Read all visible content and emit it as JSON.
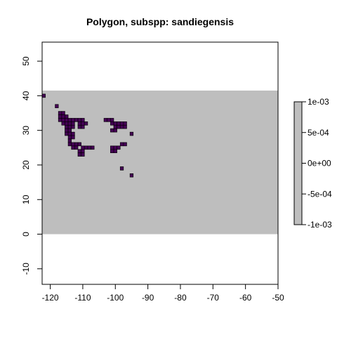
{
  "chart_data": {
    "type": "heatmap",
    "title": "Polygon, subspp: sandiegensis",
    "xlabel": "",
    "ylabel": "",
    "xlim": [
      -122.5,
      -50
    ],
    "ylim": [
      -14.5,
      55.5
    ],
    "x_ticks": [
      -120,
      -110,
      -100,
      -90,
      -80,
      -70,
      -60,
      -50
    ],
    "x_tick_labels": [
      "-120",
      "-110",
      "-100",
      "-90",
      "-80",
      "-70",
      "-60",
      "-50"
    ],
    "y_ticks": [
      -10,
      0,
      10,
      20,
      30,
      40,
      50
    ],
    "y_tick_labels": [
      "-10",
      "0",
      "10",
      "20",
      "30",
      "40",
      "50"
    ],
    "grid": false,
    "colors": {
      "background_cell": "#bebebe",
      "presence_cell": "#440154",
      "cell_border": "#000000"
    },
    "raster_extent": {
      "xmin": -122.5,
      "xmax": -50,
      "ymin": 0,
      "ymax": 41.5,
      "background_value": 0
    },
    "cell_size": 1,
    "presence_cells": [
      [
        -122,
        40
      ],
      [
        -118,
        37
      ],
      [
        -117,
        35
      ],
      [
        -116,
        35
      ],
      [
        -117,
        34
      ],
      [
        -116,
        34
      ],
      [
        -115,
        34
      ],
      [
        -117,
        33
      ],
      [
        -116,
        33
      ],
      [
        -115,
        33
      ],
      [
        -114,
        33
      ],
      [
        -113,
        33
      ],
      [
        -112,
        33
      ],
      [
        -111,
        33
      ],
      [
        -110,
        33
      ],
      [
        -116,
        32
      ],
      [
        -115,
        32
      ],
      [
        -114,
        32
      ],
      [
        -113,
        32
      ],
      [
        -111,
        32
      ],
      [
        -110,
        32
      ],
      [
        -109,
        32
      ],
      [
        -115,
        31
      ],
      [
        -114,
        31
      ],
      [
        -113,
        31
      ],
      [
        -111,
        31
      ],
      [
        -110,
        31
      ],
      [
        -115,
        30
      ],
      [
        -114,
        30
      ],
      [
        -115,
        29
      ],
      [
        -114,
        29
      ],
      [
        -113,
        29
      ],
      [
        -114,
        28
      ],
      [
        -113,
        28
      ],
      [
        -114,
        27
      ],
      [
        -114,
        26
      ],
      [
        -113,
        26
      ],
      [
        -112,
        26
      ],
      [
        -111,
        26
      ],
      [
        -113,
        25
      ],
      [
        -112,
        25
      ],
      [
        -110,
        25
      ],
      [
        -109,
        25
      ],
      [
        -108,
        25
      ],
      [
        -107,
        25
      ],
      [
        -111,
        24
      ],
      [
        -110,
        24
      ],
      [
        -111,
        23
      ],
      [
        -110,
        23
      ],
      [
        -103,
        33
      ],
      [
        -102,
        33
      ],
      [
        -101,
        33
      ],
      [
        -101,
        32
      ],
      [
        -100,
        32
      ],
      [
        -99,
        32
      ],
      [
        -98,
        32
      ],
      [
        -97,
        32
      ],
      [
        -100,
        31
      ],
      [
        -99,
        31
      ],
      [
        -98,
        31
      ],
      [
        -97,
        31
      ],
      [
        -101,
        30
      ],
      [
        -100,
        30
      ],
      [
        -95,
        29
      ],
      [
        -98,
        26
      ],
      [
        -97,
        26
      ],
      [
        -101,
        25
      ],
      [
        -100,
        25
      ],
      [
        -99,
        25
      ],
      [
        -101,
        24
      ],
      [
        -100,
        24
      ],
      [
        -98,
        19
      ],
      [
        -95,
        17
      ]
    ],
    "legend": {
      "position": "right",
      "tick_labels": [
        "1e-03",
        "5e-04",
        "0e+00",
        "-5e-04",
        "-1e-03"
      ],
      "tick_values": [
        0.001,
        0.0005,
        0,
        -0.0005,
        -0.001
      ],
      "range": [
        -0.001,
        0.001
      ],
      "color": "#bebebe"
    }
  }
}
